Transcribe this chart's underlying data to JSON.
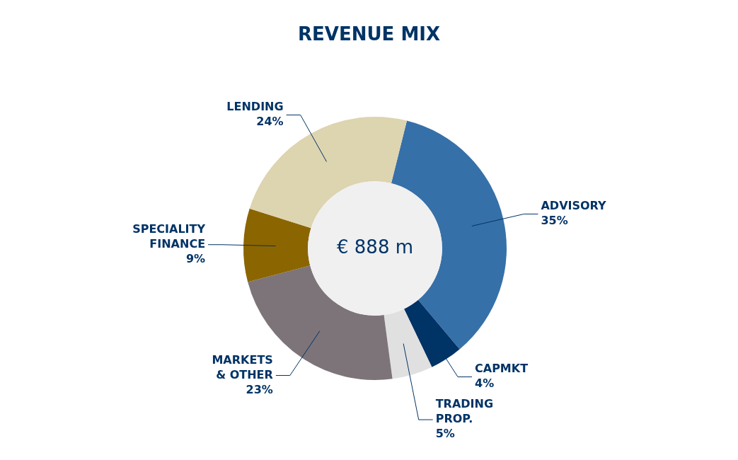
{
  "chart_data": {
    "type": "donut",
    "title": "REVENUE MIX",
    "categories": [
      "ADVISORY",
      "CAPMKT",
      "TRADING PROP.",
      "MARKETS & OTHER",
      "SPECIALITY FINANCE",
      "LENDING"
    ],
    "values": [
      35,
      4,
      5,
      23,
      9,
      24
    ],
    "value_labels": [
      "35%",
      "4%",
      "5%",
      "23%",
      "9%",
      "24%"
    ],
    "colors": [
      "#3670a8",
      "#003366",
      "#e0e0e0",
      "#7d7479",
      "#8b6500",
      "#ddd4b0"
    ],
    "annotations": [
      "€ 888 m"
    ],
    "legend": false
  }
}
